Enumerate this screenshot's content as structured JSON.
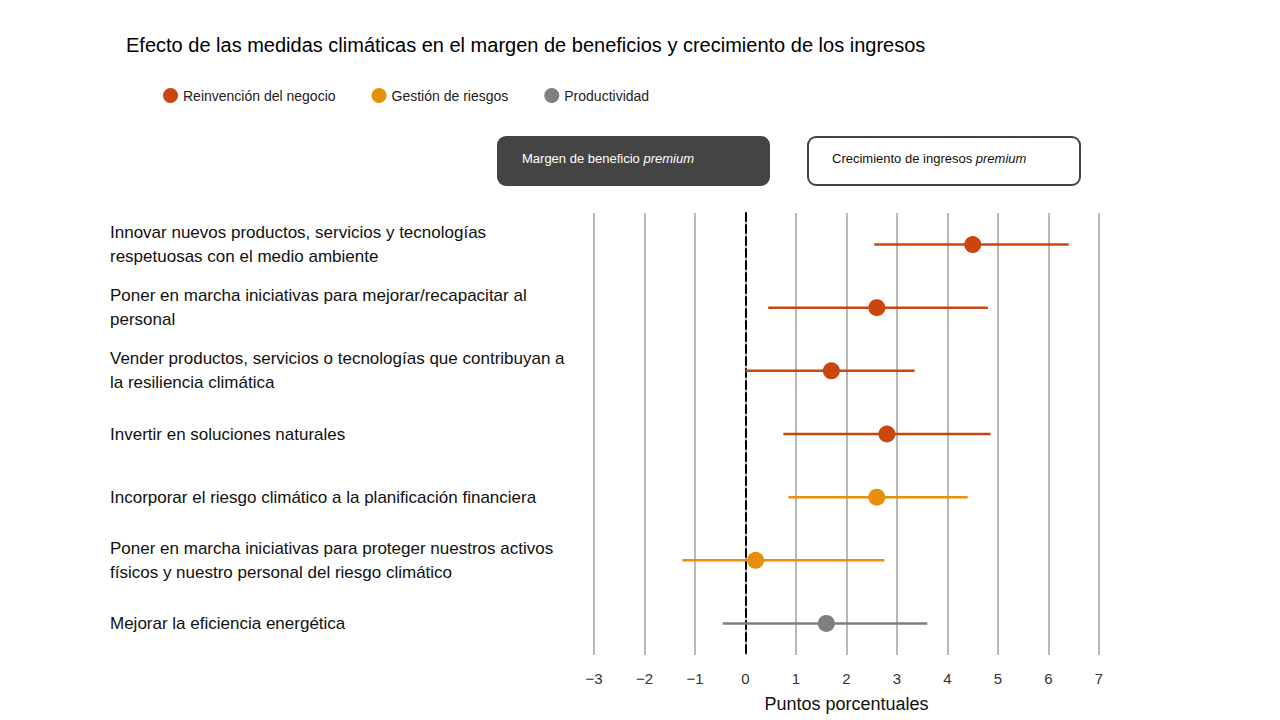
{
  "chart_data": {
    "type": "scatter",
    "title": "Efecto de las medidas climáticas en el margen de beneficios y crecimiento de los ingresos",
    "tabs": [
      "Margen de beneficio premium",
      "Crecimiento de ingresos premium"
    ],
    "x_label": "Puntos porcentuales",
    "orientation": "horizontal",
    "categories": [
      "Innovar nuevos productos, servicios y tecnologías respetuosas con el medio ambiente",
      "Poner en marcha iniciativas para mejorar/recapacitar al personal",
      "Vender productos, servicios o tecnologías que contribuyan a la resiliencia climática",
      "Invertir en soluciones naturales",
      "Incorporar el riesgo climático a la planificación financiera",
      "Poner en marcha iniciativas para proteger nuestros activos físicos y nuestro personal del riesgo climático",
      "Mejorar la eficiencia energética"
    ],
    "series": [
      {
        "name": "Reinvención del negocio",
        "color": "#c9460f",
        "marker": "circle",
        "values": [
          4.5,
          2.6,
          1.7,
          2.8,
          null,
          null,
          null
        ],
        "error_low": [
          2.55,
          0.45,
          0,
          0.75,
          null,
          null,
          null
        ],
        "error_high": [
          6.4,
          4.8,
          3.35,
          4.85,
          null,
          null,
          null
        ]
      },
      {
        "name": "Gestión de riesgos",
        "color": "#e8900c",
        "marker": "circle",
        "values": [
          null,
          null,
          null,
          null,
          2.6,
          0.2,
          null
        ],
        "error_low": [
          null,
          null,
          null,
          null,
          0.85,
          -1.25,
          null
        ],
        "error_high": [
          null,
          null,
          null,
          null,
          4.4,
          2.75,
          null
        ]
      },
      {
        "name": "Productividad",
        "color": "#7f7f7f",
        "marker": "circle",
        "values": [
          null,
          null,
          null,
          null,
          null,
          null,
          1.6
        ],
        "error_low": [
          null,
          null,
          null,
          null,
          null,
          null,
          -0.45
        ],
        "error_high": [
          null,
          null,
          null,
          null,
          null,
          null,
          3.6
        ]
      }
    ],
    "xlim": [
      -3,
      7
    ],
    "xticks": [
      {
        "value": -3,
        "label": "−3"
      },
      {
        "value": -2,
        "label": "−2"
      },
      {
        "value": -1,
        "label": "−1"
      },
      0,
      1,
      2,
      3,
      4,
      5,
      6,
      7
    ],
    "grid": true,
    "legend": "top-left"
  }
}
